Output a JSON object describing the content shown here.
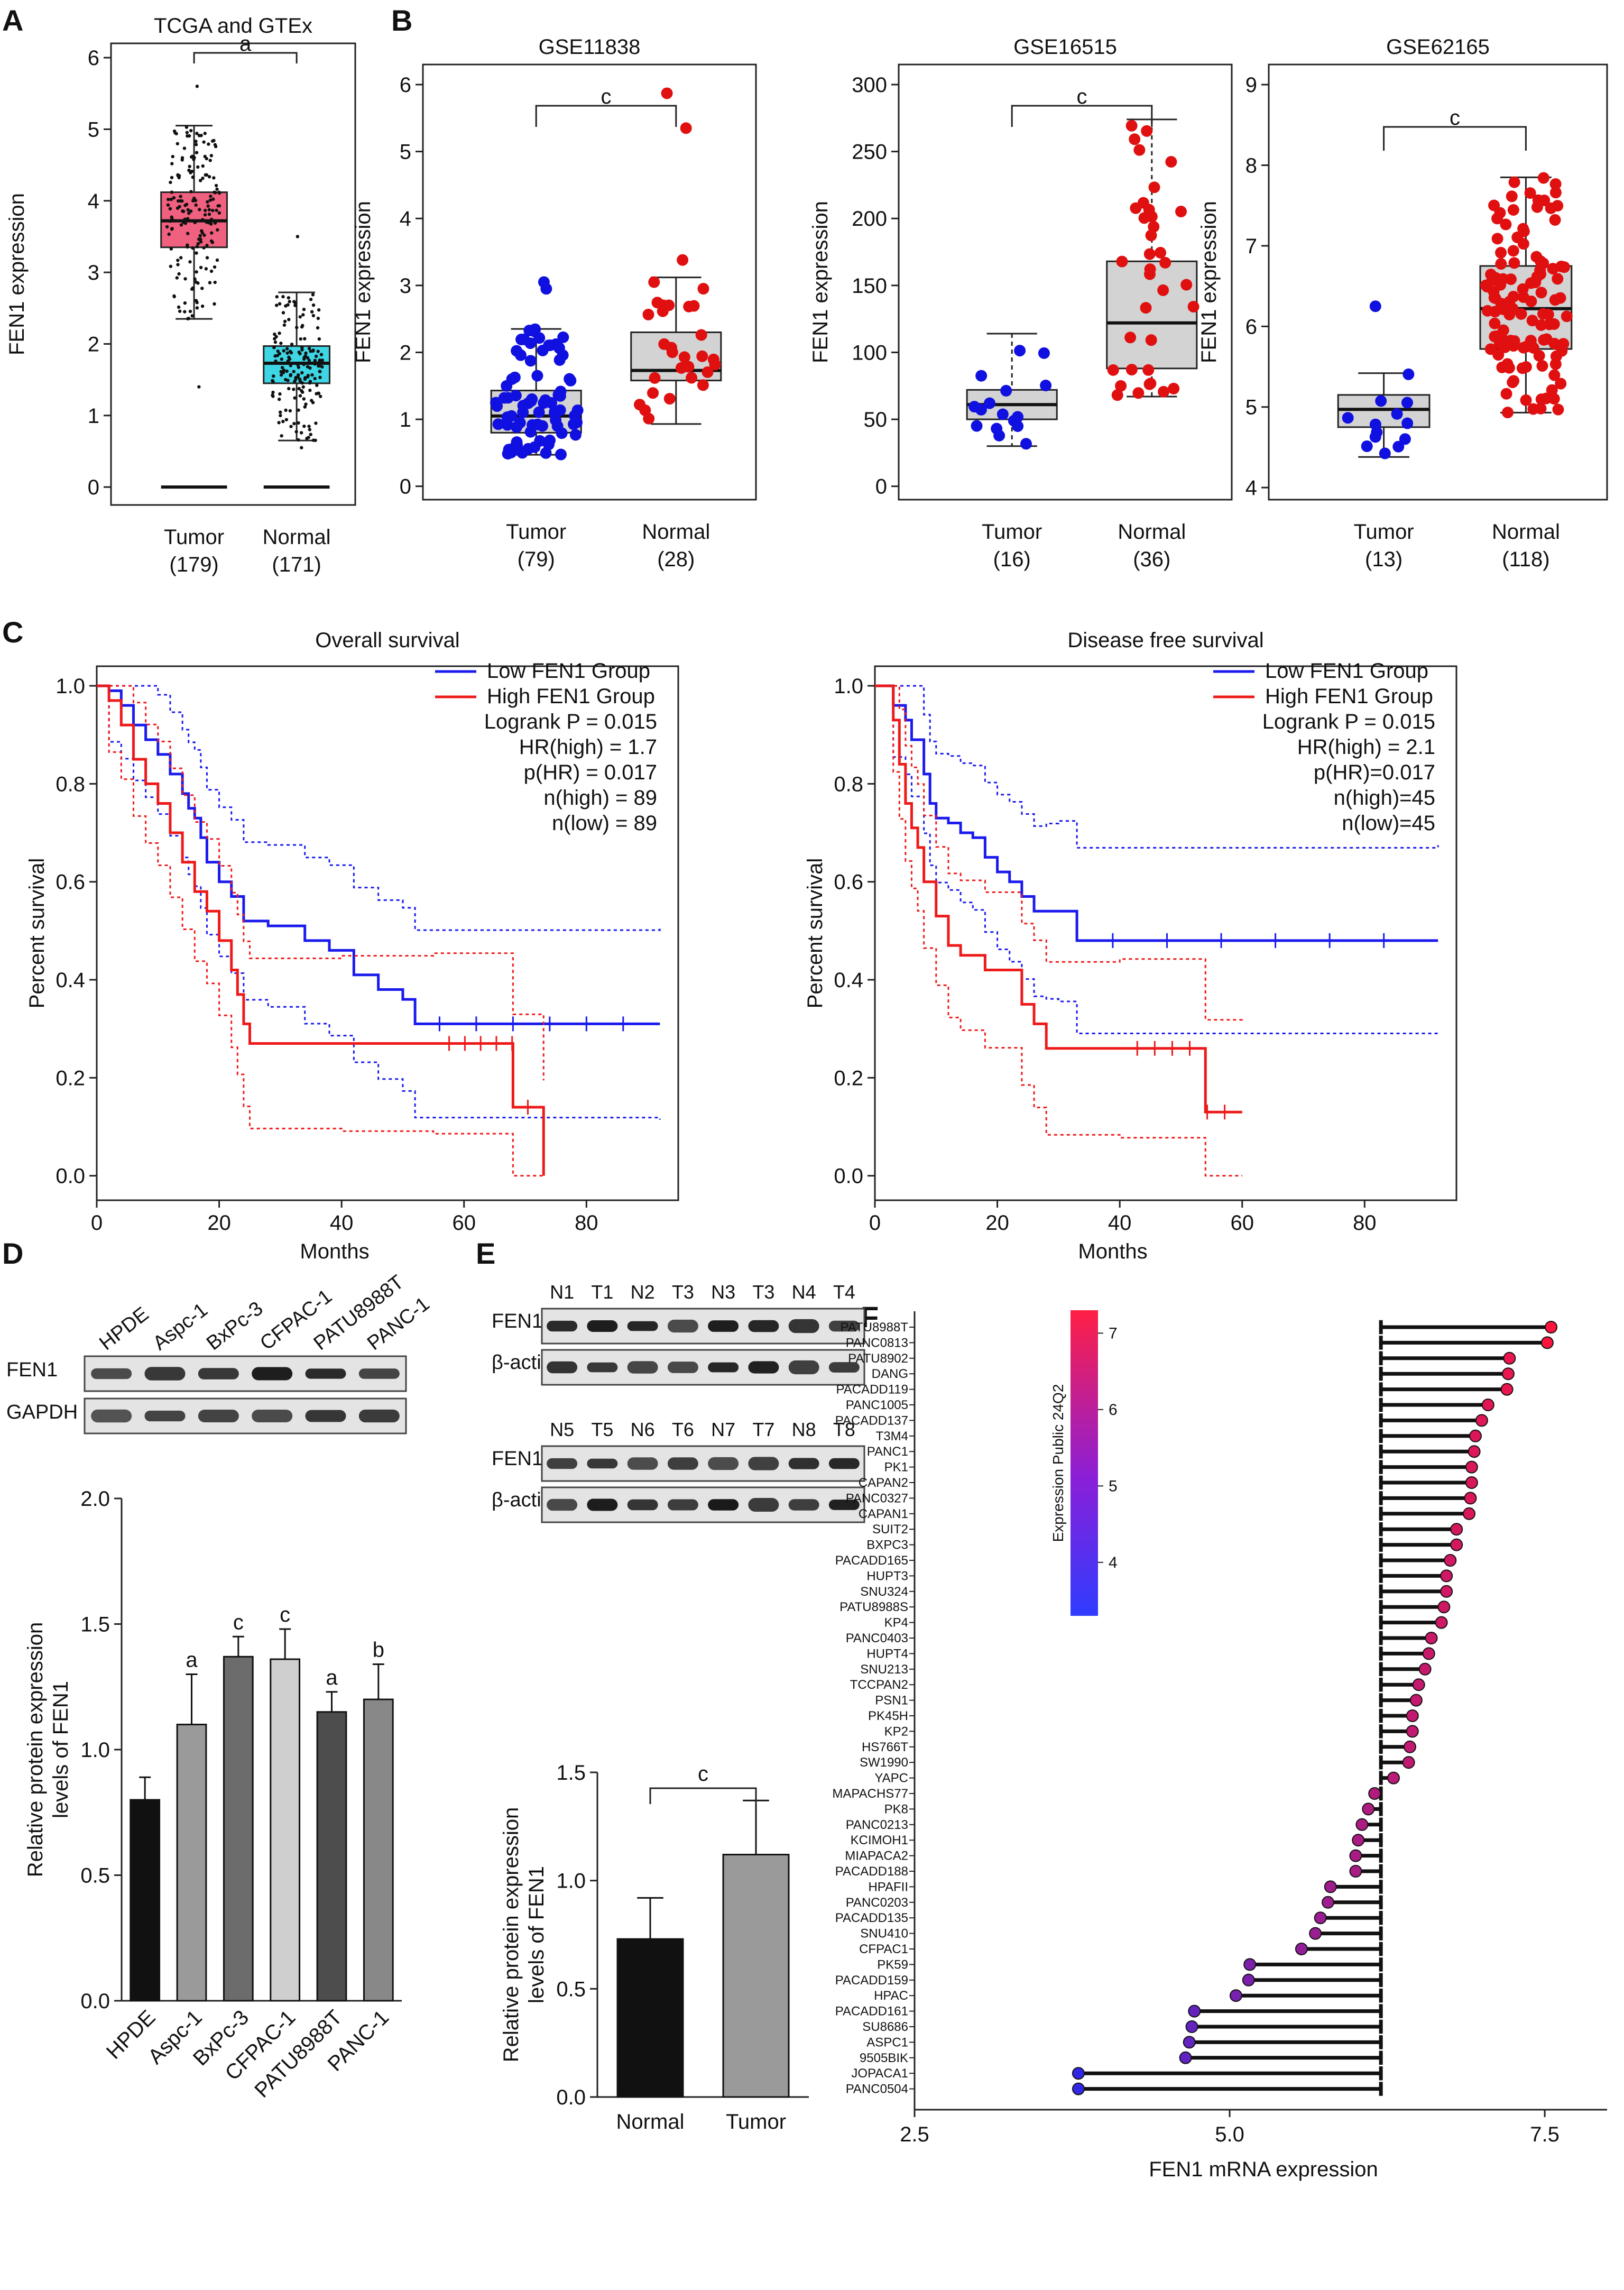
{
  "chart_data": [
    {
      "panel": "A",
      "type": "box",
      "title": "TCGA and GTEx",
      "ylabel": "FEN1 expression",
      "ylim": [
        -0.25,
        6.2
      ],
      "yticks": [
        0,
        1,
        2,
        3,
        4,
        5,
        6
      ],
      "categories": [
        "Tumor",
        "Normal"
      ],
      "counts": [
        "(179)",
        "(171)"
      ],
      "box": [
        {
          "name": "Tumor",
          "min": 2.35,
          "q1": 3.35,
          "median": 3.72,
          "q3": 4.12,
          "max": 5.05,
          "color": "#f0607f"
        },
        {
          "name": "Normal",
          "min": 0.65,
          "q1": 1.45,
          "median": 1.73,
          "q3": 1.97,
          "max": 2.72,
          "color": "#3ed6e4"
        }
      ],
      "baseline": 0,
      "significance": "a"
    },
    {
      "panel": "B1",
      "type": "box",
      "title": "GSE11838",
      "ylabel": "FEN1 expression",
      "ylim": [
        -0.2,
        6.3
      ],
      "yticks": [
        0,
        1,
        2,
        3,
        4,
        5,
        6
      ],
      "categories": [
        "Tumor",
        "Normal"
      ],
      "counts": [
        "(79)",
        "(28)"
      ],
      "box": [
        {
          "name": "Tumor",
          "min": 0.47,
          "q1": 0.8,
          "median": 1.05,
          "q3": 1.43,
          "max": 2.35,
          "color": "#1010e0"
        },
        {
          "name": "Normal",
          "min": 0.93,
          "q1": 1.58,
          "median": 1.73,
          "q3": 2.3,
          "max": 3.12,
          "color": "#e01010"
        }
      ],
      "significance": "c"
    },
    {
      "panel": "B2",
      "type": "box",
      "title": "GSE16515",
      "ylabel": "FEN1 expression",
      "ylim": [
        -10,
        315
      ],
      "yticks": [
        0,
        50,
        100,
        150,
        200,
        250,
        300
      ],
      "categories": [
        "Tumor",
        "Normal"
      ],
      "counts": [
        "(16)",
        "(36)"
      ],
      "box": [
        {
          "name": "Tumor",
          "min": 30,
          "q1": 50,
          "median": 61,
          "q3": 72,
          "max": 114,
          "color": "#1010e0"
        },
        {
          "name": "Normal",
          "min": 67,
          "q1": 88,
          "median": 122,
          "q3": 168,
          "max": 274,
          "color": "#e01010"
        }
      ],
      "significance": "c"
    },
    {
      "panel": "B3",
      "type": "box",
      "title": "GSE62165",
      "ylabel": "FEN1 expression",
      "ylim": [
        3.85,
        9.25
      ],
      "yticks": [
        4,
        5,
        6,
        7,
        8,
        9
      ],
      "categories": [
        "Tumor",
        "Normal"
      ],
      "counts": [
        "(13)",
        "(118)"
      ],
      "box": [
        {
          "name": "Tumor",
          "min": 4.38,
          "q1": 4.75,
          "median": 4.97,
          "q3": 5.15,
          "max": 5.42,
          "color": "#1010e0"
        },
        {
          "name": "Normal",
          "min": 4.93,
          "q1": 5.72,
          "median": 6.22,
          "q3": 6.75,
          "max": 7.85,
          "color": "#e01010"
        }
      ],
      "significance": "c"
    },
    {
      "panel": "C1",
      "type": "line",
      "title": "Overall survival",
      "xlabel": "Months",
      "ylabel": "Percent survival",
      "xlim": [
        0,
        95
      ],
      "ylim": [
        -0.05,
        1.04
      ],
      "xticks": [
        0,
        20,
        40,
        60,
        80
      ],
      "yticks": [
        "0.0",
        "0.2",
        "0.4",
        "0.6",
        "0.8",
        "1.0"
      ],
      "series": [
        {
          "name": "Low FEN1 Group",
          "color": "#1a1aee",
          "x": [
            0,
            2,
            4,
            6,
            8,
            10,
            12,
            14,
            15,
            16,
            17,
            18,
            20,
            22,
            24,
            28,
            34,
            38,
            42,
            46,
            50,
            52,
            92
          ],
          "y": [
            1.0,
            0.99,
            0.96,
            0.92,
            0.89,
            0.86,
            0.82,
            0.78,
            0.75,
            0.73,
            0.69,
            0.64,
            0.6,
            0.57,
            0.52,
            0.51,
            0.48,
            0.46,
            0.41,
            0.38,
            0.36,
            0.31,
            0.31
          ]
        },
        {
          "name": "High FEN1 Group",
          "color": "#ee1a1a",
          "x": [
            0,
            2,
            4,
            6,
            8,
            10,
            12,
            14,
            16,
            18,
            20,
            22,
            23,
            24,
            25,
            40,
            55,
            68,
            73
          ],
          "y": [
            1.0,
            0.97,
            0.92,
            0.85,
            0.8,
            0.76,
            0.7,
            0.64,
            0.58,
            0.54,
            0.48,
            0.42,
            0.37,
            0.31,
            0.27,
            0.27,
            0.27,
            0.14,
            0.0
          ]
        }
      ],
      "legend": [
        "Low FEN1 Group",
        "High FEN1 Group",
        "Logrank P = 0.015",
        "HR(high) = 1.7",
        "p(HR) = 0.017",
        "n(high) = 89",
        "n(low) = 89"
      ]
    },
    {
      "panel": "C2",
      "type": "line",
      "title": "Disease free survival",
      "xlabel": "Months",
      "ylabel": "Percent survival",
      "xlim": [
        0,
        95
      ],
      "ylim": [
        -0.05,
        1.04
      ],
      "xticks": [
        0,
        20,
        40,
        60,
        80
      ],
      "yticks": [
        "0.0",
        "0.2",
        "0.4",
        "0.6",
        "0.8",
        "1.0"
      ],
      "series": [
        {
          "name": "Low FEN1 Group",
          "color": "#1a1aee",
          "x": [
            0,
            3,
            5,
            6,
            8,
            9,
            10,
            12,
            14,
            16,
            18,
            20,
            22,
            24,
            26,
            28,
            30,
            33,
            92
          ],
          "y": [
            1.0,
            0.96,
            0.93,
            0.89,
            0.82,
            0.76,
            0.73,
            0.72,
            0.7,
            0.69,
            0.65,
            0.62,
            0.6,
            0.57,
            0.54,
            0.54,
            0.54,
            0.48,
            0.48
          ]
        },
        {
          "name": "High FEN1 Group",
          "color": "#ee1a1a",
          "x": [
            0,
            3,
            4,
            5,
            6,
            7,
            8,
            10,
            12,
            14,
            18,
            24,
            26,
            28,
            40,
            54,
            60
          ],
          "y": [
            1.0,
            0.93,
            0.84,
            0.76,
            0.71,
            0.67,
            0.6,
            0.53,
            0.47,
            0.45,
            0.42,
            0.35,
            0.31,
            0.26,
            0.26,
            0.13,
            0.13
          ]
        }
      ],
      "legend": [
        "Low FEN1 Group",
        "High FEN1 Group",
        "Logrank P = 0.015",
        "HR(high) = 2.1",
        "p(HR)=0.017",
        "n(high)=45",
        "n(low)=45"
      ]
    },
    {
      "panel": "D",
      "type": "bar",
      "ylabel": "Relative protein expression levels of FEN1",
      "ylim": [
        0,
        2.0
      ],
      "yticks": [
        "0.0",
        "0.5",
        "1.0",
        "1.5",
        "2.0"
      ],
      "categories": [
        "HPDE",
        "Aspc-1",
        "BxPc-3",
        "CFPAC-1",
        "PATU8988T",
        "PANC-1"
      ],
      "values": [
        0.8,
        1.1,
        1.37,
        1.36,
        1.15,
        1.2
      ],
      "errors": [
        0.09,
        0.2,
        0.08,
        0.12,
        0.08,
        0.14
      ],
      "significance": [
        "",
        "a",
        "c",
        "c",
        "a",
        "b"
      ],
      "colors": [
        "#111111",
        "#9a9a9a",
        "#6c6c6c",
        "#cfcfcf",
        "#4d4d4d",
        "#888888"
      ]
    },
    {
      "panel": "E",
      "type": "bar",
      "ylabel": "Relative protein expression levels of FEN1",
      "ylim": [
        0,
        1.5
      ],
      "yticks": [
        "0.0",
        "0.5",
        "1.0",
        "1.5"
      ],
      "categories": [
        "Normal",
        "Tumor"
      ],
      "values": [
        0.73,
        1.12
      ],
      "errors": [
        0.19,
        0.25
      ],
      "significance": "c",
      "colors": [
        "#111111",
        "#9a9a9a"
      ]
    },
    {
      "panel": "F",
      "type": "scatter",
      "xlabel": "FEN1 mRNA expression",
      "xlim": [
        2.5,
        7.5
      ],
      "xticks": [
        "2.5",
        "5.0",
        "7.5"
      ],
      "legend_title": "Expression Public 24Q2",
      "legend_ticks": [
        "4",
        "5",
        "6",
        "7"
      ],
      "categories": [
        "PATU8988T",
        "PANC0813",
        "PATU8902",
        "DANG",
        "PACADD119",
        "PANC1005",
        "PACADD137",
        "T3M4",
        "PANC1",
        "PK1",
        "CAPAN2",
        "PANC0327",
        "CAPAN1",
        "SUIT2",
        "BXPC3",
        "PACADD165",
        "HUPT3",
        "SNU324",
        "PATU8988S",
        "KP4",
        "PANC0403",
        "HUPT4",
        "SNU213",
        "TCCPAN2",
        "PSN1",
        "PK45H",
        "KP2",
        "HS766T",
        "SW1990",
        "YAPC",
        "MAPACHS77",
        "PK8",
        "PANC0213",
        "KCIMOH1",
        "MIAPACA2",
        "PACADD188",
        "HPAFII",
        "PANC0203",
        "PACADD135",
        "SNU410",
        "CFPAC1",
        "PK59",
        "PACADD159",
        "HPAC",
        "PACADD161",
        "SU8686",
        "ASPC1",
        "9505BIK",
        "JOPACA1",
        "PANC0504"
      ],
      "values": [
        7.55,
        7.52,
        7.22,
        7.21,
        7.2,
        7.05,
        7.0,
        6.95,
        6.94,
        6.92,
        6.92,
        6.91,
        6.9,
        6.8,
        6.8,
        6.75,
        6.72,
        6.72,
        6.7,
        6.68,
        6.6,
        6.58,
        6.55,
        6.5,
        6.48,
        6.45,
        6.45,
        6.43,
        6.42,
        6.3,
        6.15,
        6.1,
        6.05,
        6.02,
        6.0,
        6.0,
        5.8,
        5.78,
        5.72,
        5.68,
        5.57,
        5.16,
        5.15,
        5.05,
        4.72,
        4.7,
        4.68,
        4.65,
        3.8,
        3.8
      ]
    }
  ],
  "panel_labels": [
    "A",
    "B",
    "C",
    "D",
    "E",
    "F"
  ],
  "blots": {
    "D": {
      "lanes": [
        "HPDE",
        "Aspc-1",
        "BxPc-3",
        "CFPAC-1",
        "PATU8988T",
        "PANC-1"
      ],
      "rows": [
        "FEN1",
        "GAPDH"
      ]
    },
    "E": {
      "lanes_top": [
        "N1",
        "T1",
        "N2",
        "T3",
        "N3",
        "T3",
        "N4",
        "T4"
      ],
      "lanes_bottom": [
        "N5",
        "T5",
        "N6",
        "T6",
        "N7",
        "T7",
        "N8",
        "T8"
      ],
      "rows_top": [
        "FEN1",
        "β-actin"
      ],
      "rows_bottom": [
        "FEN1",
        "β-actin"
      ]
    }
  }
}
